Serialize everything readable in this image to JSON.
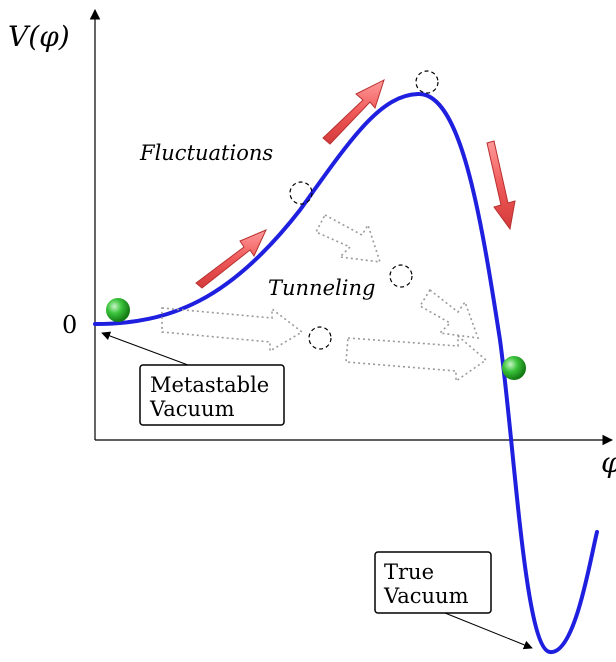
{
  "axes": {
    "y_label": "V(φ)",
    "x_label": "φ",
    "zero_label": "0"
  },
  "labels": {
    "fluctuations": "Fluctuations",
    "tunneling": "Tunneling"
  },
  "boxes": {
    "metastable_line1": "Metastable",
    "metastable_line2": "Vacuum",
    "true_line1": "True",
    "true_line2": "Vacuum"
  },
  "colors": {
    "curve": "#1f1fe0",
    "ball": "#2fb52f",
    "arrow": "#f05a5a"
  }
}
